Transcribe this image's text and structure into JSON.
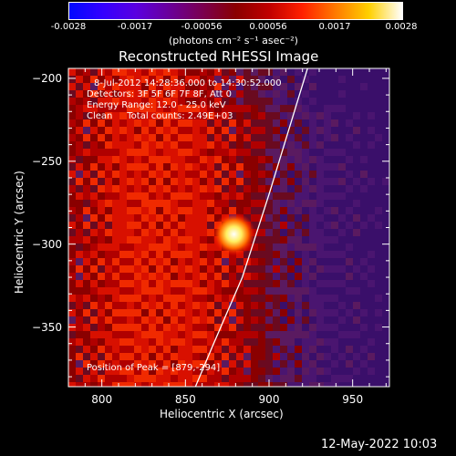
{
  "chart_data": {
    "type": "heatmap",
    "title": "Reconstructed RHESSI Image",
    "xlabel": "Heliocentric X (arcsec)",
    "ylabel": "Heliocentric Y (arcsec)",
    "xlim": [
      780,
      972
    ],
    "ylim": [
      -386,
      -194
    ],
    "x_ticks": [
      800,
      850,
      900,
      950
    ],
    "y_ticks": [
      -200,
      -250,
      -300,
      -350
    ],
    "colorbar": {
      "ticks": [
        "-0.0028",
        "-0.0017",
        "-0.00056",
        "0.00056",
        "0.0017",
        "0.0028"
      ],
      "range": [
        -0.0028,
        0.0028
      ],
      "units_label": "(photons cm⁻² s⁻¹ asec⁻²)"
    },
    "annotations": {
      "time_range": "8-Jul-2012 14:28:36.000 to 14:30:52.000",
      "detectors": "Detectors: 3F 5F 6F 7F 8F, Att 0",
      "energy_range": "Energy Range: 12.0 - 25.0 keV",
      "clean_line": "Clean     Total counts: 2.49E+03",
      "peak_position": "Position of Peak = [879,-294]"
    },
    "peak": {
      "x": 879,
      "y": -294
    },
    "limb": [
      {
        "x": 923,
        "y": -194
      },
      {
        "x": 900,
        "y": -270
      },
      {
        "x": 884,
        "y": -320
      },
      {
        "x": 866,
        "y": -362
      },
      {
        "x": 856,
        "y": -386
      }
    ],
    "colormap": "blue-purple-red-yellow-white",
    "grid": false
  },
  "footer": {
    "timestamp": "12-May-2022 10:03"
  }
}
